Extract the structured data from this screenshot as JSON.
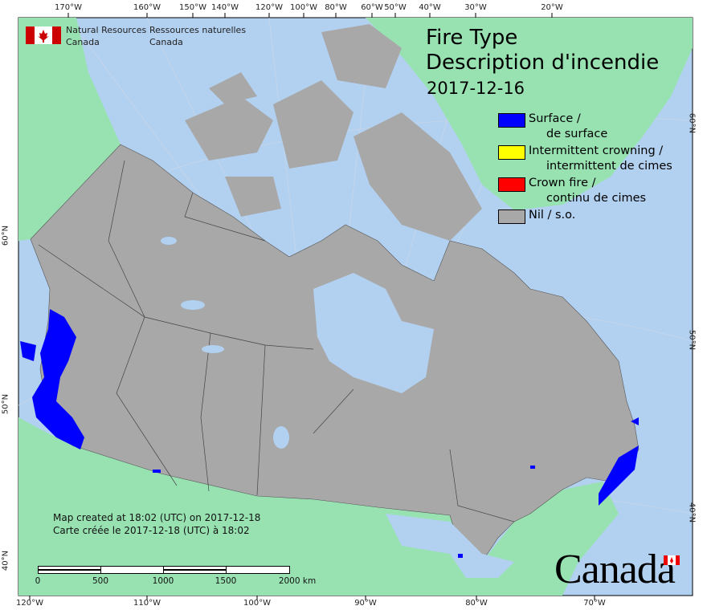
{
  "header": {
    "agency_en": [
      "Natural Resources",
      "Canada"
    ],
    "agency_fr": [
      "Ressources naturelles",
      "Canada"
    ]
  },
  "title": {
    "line1": "Fire Type",
    "line2": "Description d'incendie",
    "date": "2017-12-16"
  },
  "legend": [
    {
      "label": "Surface /",
      "label2": "de surface",
      "color": "#0000ff"
    },
    {
      "label": "Intermittent crowning /",
      "label2": "intermittent de cimes",
      "color": "#ffff00"
    },
    {
      "label": "Crown fire /",
      "label2": "continu de cimes",
      "color": "#ff0000"
    },
    {
      "label": "Nil / s.o.",
      "label2": "",
      "color": "#a8a8a8"
    }
  ],
  "credit": {
    "en": "Map created at 18:02 (UTC) on 2017-12-18",
    "fr": "Carte créée le 2017-12-18 (UTC) à 18:02"
  },
  "scale": {
    "labels": [
      "0",
      "500",
      "1000",
      "1500",
      "2000  km"
    ]
  },
  "ticks": {
    "top": [
      "170°W",
      "160°W",
      "150°W",
      "140°W",
      "120°W",
      "100°W",
      "80°W",
      "60°W",
      "50°W",
      "40°W",
      "30°W",
      "20°W"
    ],
    "bottom": [
      "120°W",
      "110°W",
      "100°W",
      "90°W",
      "80°W",
      "70°W"
    ],
    "left": [
      "60°N",
      "50°N",
      "40°N"
    ],
    "right": [
      "60°N",
      "50°N",
      "40°N"
    ]
  },
  "wordmark": "Canada",
  "colors": {
    "ocean": "#b2d0f0",
    "land": "#98e2b2",
    "canada": "#a8a8a8",
    "fire": "#0000ff"
  }
}
